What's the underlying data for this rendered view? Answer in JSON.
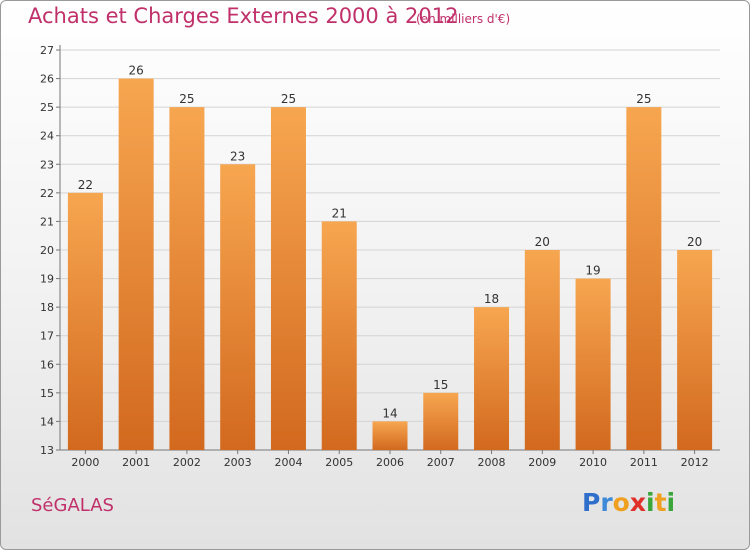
{
  "header": {
    "title": "Achats et Charges Externes 2000 à 2012",
    "subtitle": "(en milliers d'€)"
  },
  "footer": {
    "commune": "SéGALAS",
    "brand_letters": [
      {
        "ch": "P",
        "color": "#2f6fcb"
      },
      {
        "ch": "r",
        "color": "#3f8ad8"
      },
      {
        "ch": "o",
        "color": "#f0a020"
      },
      {
        "ch": "x",
        "color": "#e0302a"
      },
      {
        "ch": "i",
        "color": "#3aa63a"
      },
      {
        "ch": "t",
        "color": "#f0a020"
      },
      {
        "ch": "i",
        "color": "#3aa63a"
      }
    ]
  },
  "colors": {
    "bar_light": "#f7a650",
    "bar_dark": "#d2691e",
    "text_accent": "#c0306a"
  },
  "chart_data": {
    "type": "bar",
    "title": "Achats et Charges Externes 2000 à 2012",
    "subtitle": "(en milliers d'€)",
    "categories": [
      "2000",
      "2001",
      "2002",
      "2003",
      "2004",
      "2005",
      "2006",
      "2007",
      "2008",
      "2009",
      "2010",
      "2011",
      "2012"
    ],
    "values": [
      22,
      26,
      25,
      23,
      25,
      21,
      14,
      15,
      18,
      20,
      19,
      25,
      20
    ],
    "xlabel": "",
    "ylabel": "",
    "ylim": [
      13,
      27
    ],
    "yticks": [
      13,
      14,
      15,
      16,
      17,
      18,
      19,
      20,
      21,
      22,
      23,
      24,
      25,
      26,
      27
    ],
    "grid": true,
    "legend": "none"
  }
}
